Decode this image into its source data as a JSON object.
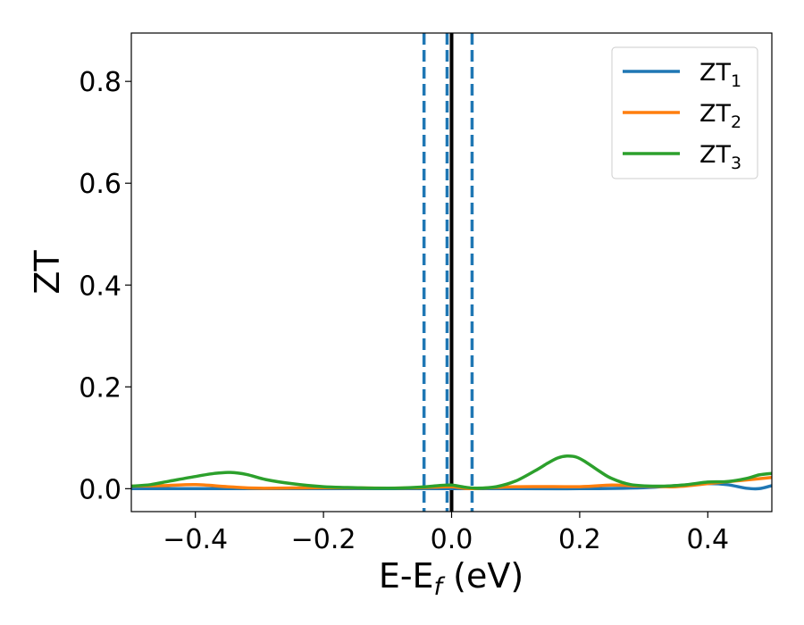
{
  "chart_data": {
    "type": "line",
    "title": "",
    "xlabel": {
      "main": "E-E",
      "sub": "f",
      "suffix": " (eV)"
    },
    "ylabel": "ZT",
    "xlim": [
      -0.5,
      0.5
    ],
    "ylim": [
      -0.045,
      0.895
    ],
    "xticks": [
      -0.4,
      -0.2,
      0.0,
      0.2,
      0.4
    ],
    "xtick_labels": [
      "−0.4",
      "−0.2",
      "0.0",
      "0.2",
      "0.4"
    ],
    "yticks": [
      0.0,
      0.2,
      0.4,
      0.6,
      0.8
    ],
    "ytick_labels": [
      "0.0",
      "0.2",
      "0.4",
      "0.6",
      "0.8"
    ],
    "grid": false,
    "legend_position": "top-right",
    "series": [
      {
        "name": {
          "main": "ZT",
          "sub": "1"
        },
        "color": "#1f77b4",
        "x": [
          -0.5,
          -0.4,
          -0.3,
          -0.2,
          -0.1,
          -0.05,
          0.0,
          0.05,
          0.1,
          0.2,
          0.3,
          0.35,
          0.4,
          0.43,
          0.46,
          0.48,
          0.5
        ],
        "y": [
          0.0,
          0.0,
          0.0,
          0.0,
          0.0,
          0.0,
          0.0,
          0.0,
          0.0,
          0.0,
          0.002,
          0.006,
          0.01,
          0.008,
          0.001,
          0.0,
          0.006
        ]
      },
      {
        "name": {
          "main": "ZT",
          "sub": "2"
        },
        "color": "#ff7f0e",
        "x": [
          -0.5,
          -0.45,
          -0.4,
          -0.35,
          -0.3,
          -0.2,
          -0.1,
          -0.05,
          0.0,
          0.03,
          0.1,
          0.2,
          0.25,
          0.3,
          0.35,
          0.4,
          0.45,
          0.5
        ],
        "y": [
          0.005,
          0.006,
          0.008,
          0.004,
          0.001,
          0.002,
          0.001,
          0.002,
          0.004,
          0.0,
          0.004,
          0.004,
          0.007,
          0.005,
          0.004,
          0.01,
          0.016,
          0.022
        ]
      },
      {
        "name": {
          "main": "ZT",
          "sub": "3"
        },
        "color": "#2ca02c",
        "x": [
          -0.5,
          -0.47,
          -0.44,
          -0.4,
          -0.37,
          -0.345,
          -0.32,
          -0.29,
          -0.25,
          -0.2,
          -0.15,
          -0.1,
          -0.05,
          -0.02,
          0.0,
          0.02,
          0.04,
          0.07,
          0.1,
          0.13,
          0.15,
          0.165,
          0.18,
          0.195,
          0.21,
          0.23,
          0.25,
          0.28,
          0.32,
          0.36,
          0.4,
          0.43,
          0.46,
          0.48,
          0.5
        ],
        "y": [
          0.005,
          0.008,
          0.015,
          0.024,
          0.03,
          0.032,
          0.028,
          0.018,
          0.01,
          0.004,
          0.002,
          0.001,
          0.003,
          0.006,
          0.007,
          0.003,
          0.001,
          0.004,
          0.015,
          0.035,
          0.05,
          0.06,
          0.064,
          0.062,
          0.052,
          0.035,
          0.02,
          0.008,
          0.005,
          0.007,
          0.013,
          0.014,
          0.02,
          0.027,
          0.03
        ]
      }
    ],
    "vertical_lines": [
      {
        "x": -0.043,
        "style": "dashed",
        "color": "#1f77b4"
      },
      {
        "x": -0.007,
        "style": "dashed",
        "color": "#1f77b4"
      },
      {
        "x": 0.0,
        "style": "solid",
        "color": "#000000"
      },
      {
        "x": 0.032,
        "style": "dashed",
        "color": "#1f77b4"
      }
    ]
  }
}
